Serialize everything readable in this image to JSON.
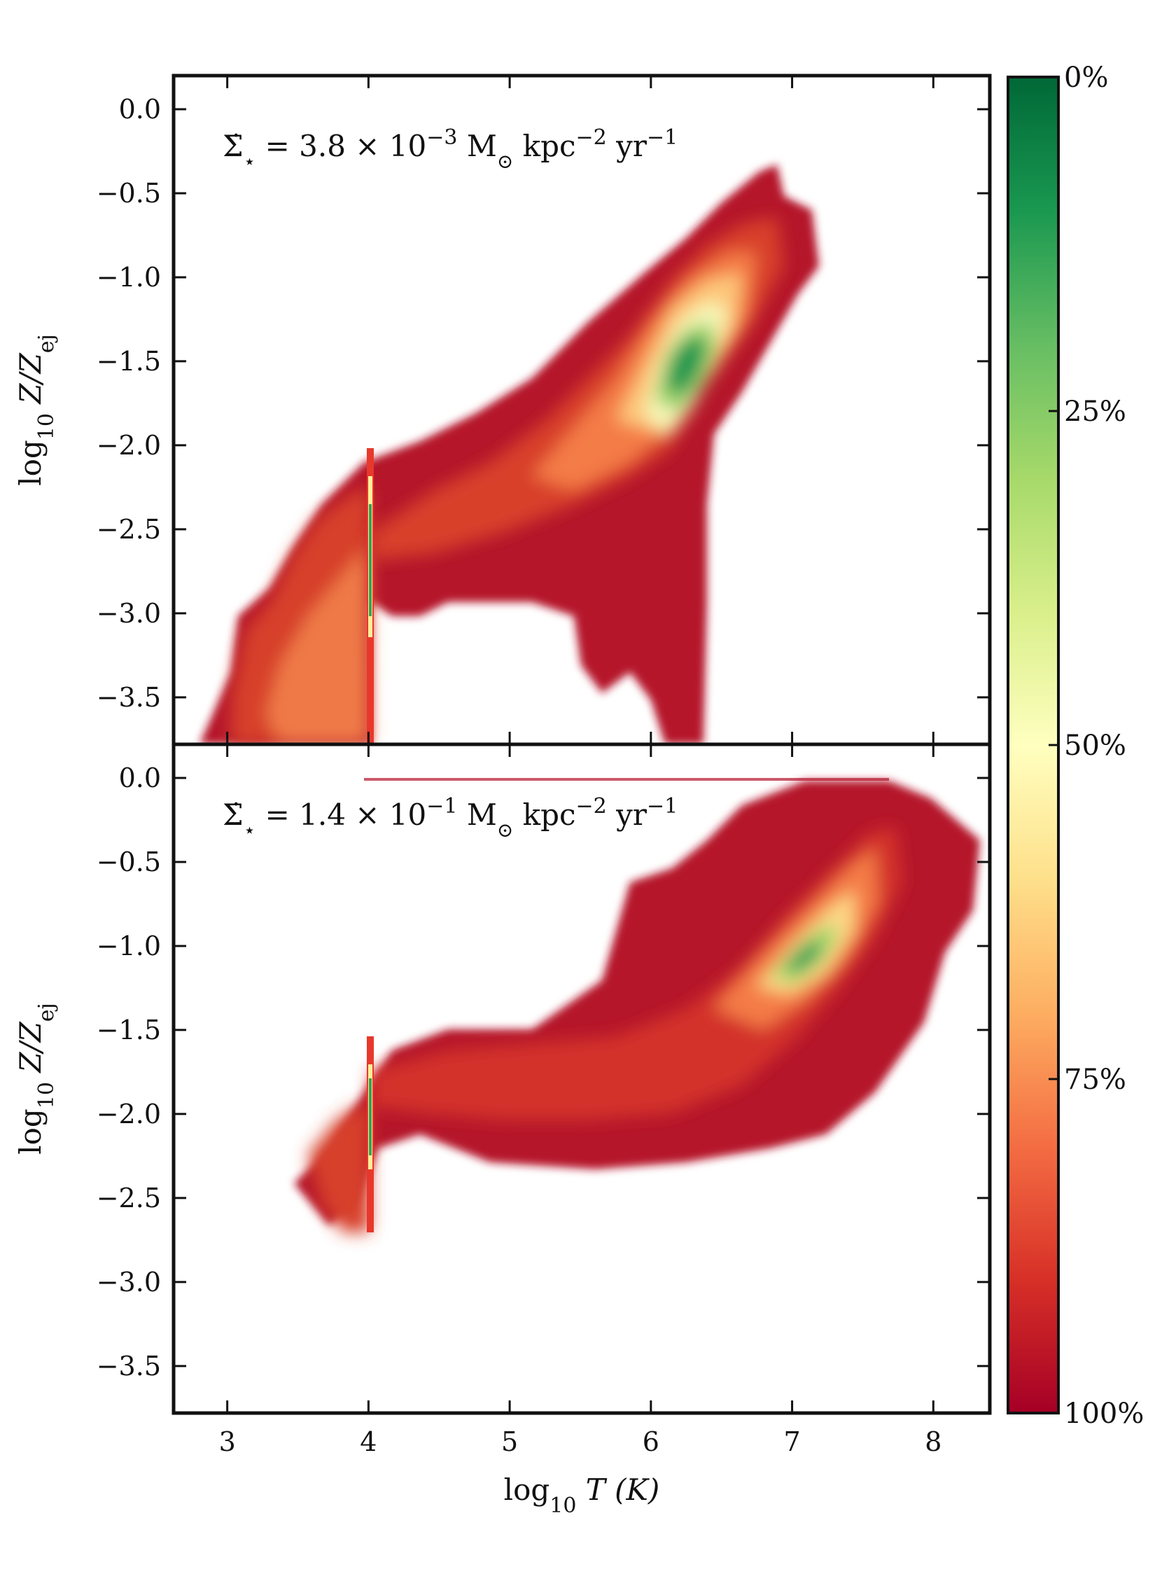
{
  "chart_data": {
    "type": "heatmap",
    "colorbar": {
      "colormap": "RdYlGn",
      "colors": [
        "#a50026",
        "#d73027",
        "#f46d43",
        "#fdae61",
        "#fee08b",
        "#ffffbf",
        "#d9ef8b",
        "#a6d96a",
        "#66bd63",
        "#1a9850",
        "#006837"
      ],
      "tick_labels": [
        "0%",
        "25%",
        "50%",
        "75%",
        "100%"
      ],
      "tick_values": [
        0,
        25,
        50,
        75,
        100
      ],
      "range": [
        0,
        100
      ]
    },
    "x_shared": {
      "label_parts": {
        "pre": "log",
        "sub": "10",
        "post": " T (K)"
      },
      "range": [
        2.62,
        8.4
      ],
      "ticks": [
        3,
        4,
        5,
        6,
        7,
        8
      ],
      "tick_labels": [
        "3",
        "4",
        "5",
        "6",
        "7",
        "8"
      ]
    },
    "panels": [
      {
        "annotation": {
          "sym": "Σ̇",
          "sym_sub": "⋆",
          "eq": " = 3.8 × 10",
          "exp": "−3",
          "unit1": " M",
          "unit1_sub": "⊙",
          "unit2": " kpc",
          "unit2_exp": "−2",
          "unit3": " yr",
          "unit3_exp": "−1"
        },
        "ylabel_parts": {
          "pre": "log",
          "sub": "10",
          "mid": " Z/Z",
          "sub2": "ej"
        },
        "ylim": [
          -3.78,
          0.2
        ],
        "yticks": [
          0.0,
          -0.5,
          -1.0,
          -1.5,
          -2.0,
          -2.5,
          -3.0,
          -3.5
        ],
        "ytick_labels": [
          "0.0",
          "−0.5",
          "−1.0",
          "−1.5",
          "−2.0",
          "−2.5",
          "−3.0",
          "−3.5"
        ],
        "ridge": {
          "x": [
            4.0,
            5.0,
            5.6,
            6.0,
            6.2,
            6.4,
            6.6,
            6.8,
            7.0,
            7.2
          ],
          "y": [
            -2.45,
            -2.2,
            -2.0,
            -1.85,
            -1.68,
            -1.55,
            -1.35,
            -1.1,
            -0.85,
            -0.75
          ]
        },
        "dense_core": {
          "x": 6.35,
          "y": -1.55,
          "percent": 5
        }
      },
      {
        "annotation": {
          "sym": "Σ̇",
          "sym_sub": "⋆",
          "eq": " = 1.4 × 10",
          "exp": "−1",
          "unit1": " M",
          "unit1_sub": "⊙",
          "unit2": " kpc",
          "unit2_exp": "−2",
          "unit3": " yr",
          "unit3_exp": "−1"
        },
        "ylabel_parts": {
          "pre": "log",
          "sub": "10",
          "mid": " Z/Z",
          "sub2": "ej"
        },
        "ylim": [
          -3.78,
          0.2
        ],
        "yticks": [
          0.0,
          -0.5,
          -1.0,
          -1.5,
          -2.0,
          -2.5,
          -3.0,
          -3.5
        ],
        "ytick_labels": [
          "0.0",
          "−0.5",
          "−1.0",
          "−1.5",
          "−2.0",
          "−2.5",
          "−3.0",
          "−3.5"
        ],
        "ridge": {
          "x": [
            4.0,
            5.0,
            6.0,
            6.5,
            7.0,
            7.3,
            7.6,
            7.8
          ],
          "y": [
            -1.75,
            -1.8,
            -1.7,
            -1.5,
            -1.2,
            -0.95,
            -0.6,
            -0.3
          ]
        },
        "dense_core": {
          "x": 7.15,
          "y": -0.95,
          "percent": 10
        }
      }
    ]
  }
}
